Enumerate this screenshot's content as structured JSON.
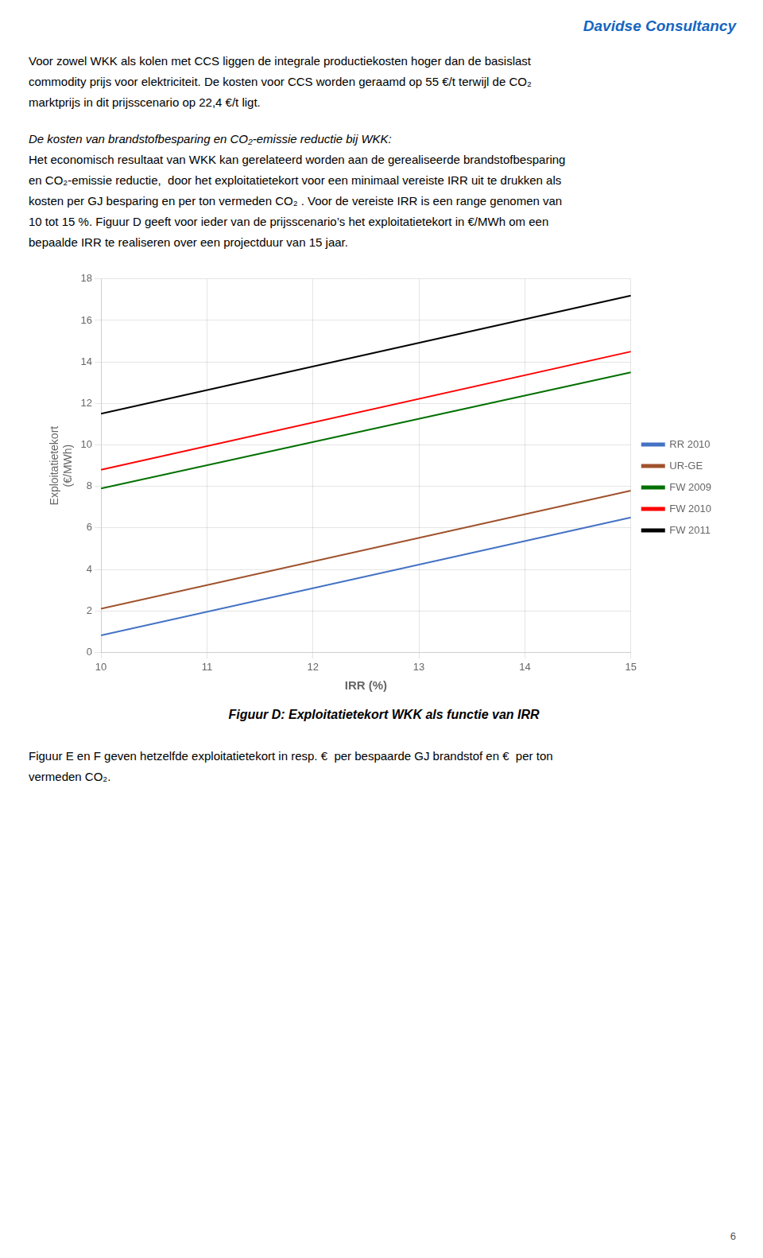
{
  "company": "Davidse Consultancy",
  "para1": [
    "Voor zowel WKK als kolen met CCS liggen de integrale productiekosten hoger dan de basislast",
    "commodity prijs voor elektriciteit. De kosten voor CCS worden geraamd op 55 €/t terwijl de CO₂",
    "marktprijs in dit prijsscenario op 22,4 €/t ligt."
  ],
  "heading": "De kosten van brandstofbesparing en CO₂-emissie reductie bij WKK:",
  "para2": [
    "Het economisch resultaat van WKK kan gerelateerd worden aan de gerealiseerde brandstofbesparing",
    "en CO₂-emissie reductie,  door het exploitatietekort voor een minimaal vereiste IRR uit te drukken als",
    "kosten per GJ besparing en per ton vermeden CO₂ . Voor de vereiste IRR is een range genomen van",
    "10 tot 15 %. Figuur D geeft voor ieder van de prijsscenario’s het exploitatietekort in €/MWh om een",
    "bepaalde IRR te realiseren over een projectduur van 15 jaar."
  ],
  "para3": [
    "Figuur E en F geven hetzelfde exploitatietekort in resp. €  per bespaarde GJ brandstof en €  per ton",
    "vermeden CO₂."
  ],
  "page_number": "6",
  "chart_data": {
    "type": "line",
    "caption": "Figuur D: Exploitatietekort WKK als functie van IRR",
    "xlabel": "IRR (%)",
    "ylabel": [
      "Exploitatietekort",
      "(€/MWh)"
    ],
    "x": [
      10,
      15
    ],
    "series": [
      {
        "name": "RR 2010",
        "color": "#4472C4",
        "values": [
          0.82,
          6.5
        ]
      },
      {
        "name": "UR-GE",
        "color": "#A0522D",
        "values": [
          2.1,
          7.8
        ]
      },
      {
        "name": "FW 2009",
        "color": "#007000",
        "values": [
          7.9,
          13.5
        ]
      },
      {
        "name": "FW 2010",
        "color": "#FF0000",
        "values": [
          8.8,
          14.5
        ]
      },
      {
        "name": "FW 2011",
        "color": "#000000",
        "values": [
          11.5,
          17.2
        ]
      }
    ],
    "xlim": [
      10,
      15
    ],
    "xticks": [
      10,
      11,
      12,
      13,
      14,
      15
    ],
    "ylim": [
      0,
      18
    ],
    "yticks": [
      0,
      2,
      4,
      6,
      8,
      10,
      12,
      14,
      16,
      18
    ],
    "grid": true,
    "legend": "right"
  }
}
